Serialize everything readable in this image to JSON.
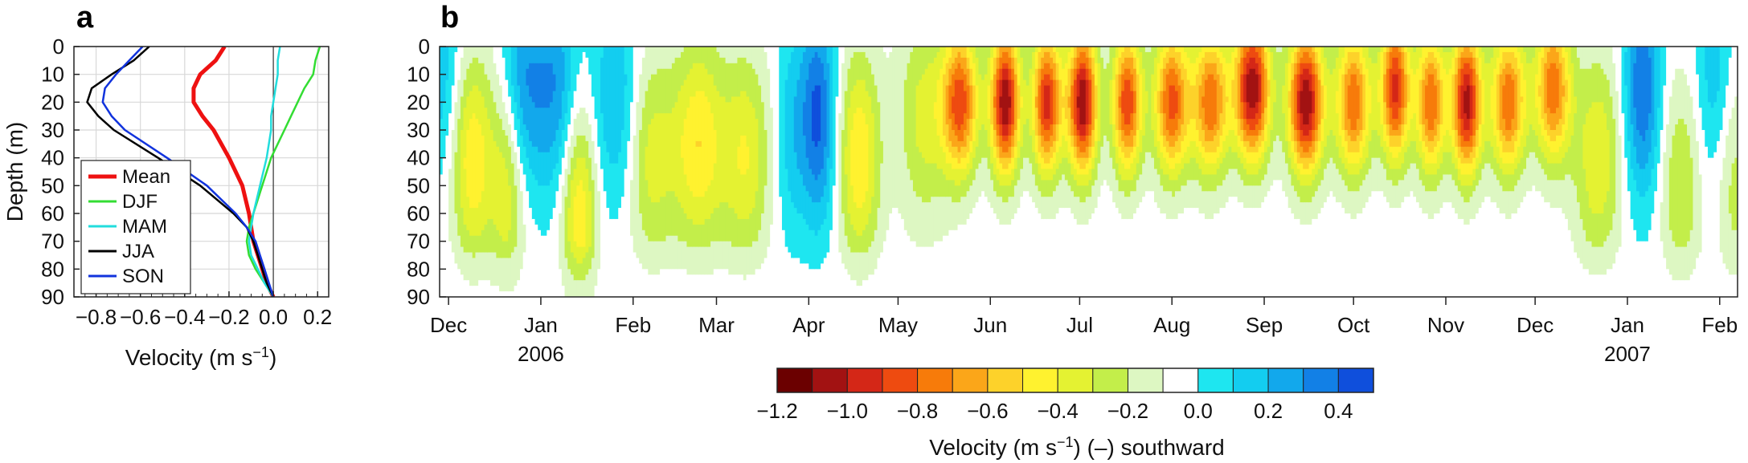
{
  "chart_data": [
    {
      "panel": "a",
      "type": "line",
      "xlabel": "Velocity (m s",
      "xlabel_sup": "−1",
      "xlabel_tail": ")",
      "ylabel": "Depth (m)",
      "xlim": [
        -0.9,
        0.25
      ],
      "ylim": [
        90,
        0
      ],
      "x_ticks": [
        -0.8,
        -0.6,
        -0.4,
        -0.2,
        0.0,
        0.2
      ],
      "x_tick_labels": [
        "−0.8",
        "−0.6",
        "−0.4",
        "−0.2",
        "0.0",
        "0.2"
      ],
      "y_ticks": [
        0,
        10,
        20,
        30,
        40,
        50,
        60,
        70,
        80,
        90
      ],
      "y_tick_labels": [
        "0",
        "10",
        "20",
        "30",
        "40",
        "50",
        "60",
        "70",
        "80",
        "90"
      ],
      "grid": true,
      "legend_position": "bottom-left",
      "depth": [
        0,
        5,
        10,
        15,
        20,
        25,
        30,
        40,
        50,
        60,
        65,
        70,
        75,
        80,
        85,
        90
      ],
      "series": [
        {
          "name": "Mean",
          "color": "#ee1111",
          "width": 5,
          "values": [
            -0.22,
            -0.26,
            -0.33,
            -0.36,
            -0.36,
            -0.32,
            -0.27,
            -0.2,
            -0.14,
            -0.11,
            -0.1,
            -0.09,
            -0.07,
            -0.05,
            -0.03,
            0.0
          ]
        },
        {
          "name": "DJF",
          "color": "#33dd33",
          "width": 2.5,
          "values": [
            0.21,
            0.19,
            0.18,
            0.14,
            0.11,
            0.08,
            0.05,
            -0.01,
            -0.05,
            -0.09,
            -0.11,
            -0.12,
            -0.11,
            -0.08,
            -0.04,
            0.0
          ]
        },
        {
          "name": "MAM",
          "color": "#22dddd",
          "width": 2.5,
          "values": [
            0.03,
            0.02,
            0.02,
            0.01,
            0.0,
            -0.01,
            -0.01,
            -0.03,
            -0.06,
            -0.09,
            -0.1,
            -0.11,
            -0.1,
            -0.07,
            -0.04,
            0.0
          ]
        },
        {
          "name": "JJA",
          "color": "#000000",
          "width": 2.5,
          "values": [
            -0.56,
            -0.63,
            -0.73,
            -0.82,
            -0.84,
            -0.79,
            -0.72,
            -0.52,
            -0.33,
            -0.18,
            -0.12,
            -0.09,
            -0.07,
            -0.05,
            -0.03,
            0.0
          ]
        },
        {
          "name": "SON",
          "color": "#1133dd",
          "width": 2.5,
          "values": [
            -0.59,
            -0.65,
            -0.71,
            -0.76,
            -0.77,
            -0.73,
            -0.67,
            -0.48,
            -0.3,
            -0.17,
            -0.12,
            -0.08,
            -0.06,
            -0.04,
            -0.02,
            0.0
          ]
        }
      ]
    },
    {
      "panel": "b",
      "type": "heatmap",
      "description_of_field": "alongshore velocity versus depth (0–90 m) and time (Dec 2005 – Feb 2007); filled contours",
      "ylim": [
        90,
        0
      ],
      "y_ticks": [
        0,
        10,
        20,
        30,
        40,
        50,
        60,
        70,
        80,
        90
      ],
      "y_tick_labels": [
        "0",
        "10",
        "20",
        "30",
        "40",
        "50",
        "60",
        "70",
        "80",
        "90"
      ],
      "x_ticks": [
        "Dec",
        "Jan",
        "Feb",
        "Mar",
        "Apr",
        "May",
        "Jun",
        "Jul",
        "Aug",
        "Sep",
        "Oct",
        "Nov",
        "Dec",
        "Jan",
        "Feb"
      ],
      "x_tick_days": [
        0,
        31,
        62,
        90,
        121,
        151,
        182,
        212,
        243,
        274,
        304,
        335,
        365,
        396,
        427
      ],
      "x_range_days": [
        -3,
        433
      ],
      "year_labels": [
        {
          "text": "2006",
          "tick_index": 1
        },
        {
          "text": "2007",
          "tick_index": 13
        }
      ],
      "velocity_levels": [
        -1.2,
        -1.1,
        -1.0,
        -0.9,
        -0.8,
        -0.7,
        -0.6,
        -0.5,
        -0.4,
        -0.3,
        -0.2,
        -0.1,
        0.0,
        0.1,
        0.2,
        0.3,
        0.4,
        0.5
      ],
      "events": [
        {
          "day": -3,
          "amp": 0.22,
          "width": 8,
          "core_depth": 10
        },
        {
          "day": 8,
          "amp": -0.45,
          "width": 7,
          "core_depth": 40
        },
        {
          "day": 20,
          "amp": -0.35,
          "width": 6,
          "core_depth": 50
        },
        {
          "day": 25,
          "amp": 0.35,
          "width": 7,
          "core_depth": 15
        },
        {
          "day": 36,
          "amp": 0.32,
          "width": 7,
          "core_depth": 15
        },
        {
          "day": 44,
          "amp": -0.45,
          "width": 6,
          "core_depth": 60
        },
        {
          "day": 56,
          "amp": 0.25,
          "width": 8,
          "core_depth": 20
        },
        {
          "day": 68,
          "amp": -0.3,
          "width": 8,
          "core_depth": 40
        },
        {
          "day": 84,
          "amp": -0.45,
          "width": 9,
          "core_depth": 35
        },
        {
          "day": 100,
          "amp": -0.35,
          "width": 8,
          "core_depth": 40
        },
        {
          "day": 115,
          "amp": 0.18,
          "width": 5,
          "core_depth": 30
        },
        {
          "day": 124,
          "amp": 0.48,
          "width": 6,
          "core_depth": 25
        },
        {
          "day": 138,
          "amp": -0.45,
          "width": 7,
          "core_depth": 40
        },
        {
          "day": 160,
          "amp": -0.3,
          "width": 9,
          "core_depth": 25
        },
        {
          "day": 172,
          "amp": -0.8,
          "width": 6,
          "core_depth": 20
        },
        {
          "day": 187,
          "amp": -1.05,
          "width": 5,
          "core_depth": 20
        },
        {
          "day": 201,
          "amp": -0.9,
          "width": 5,
          "core_depth": 20
        },
        {
          "day": 213,
          "amp": -1.05,
          "width": 5,
          "core_depth": 20
        },
        {
          "day": 228,
          "amp": -0.85,
          "width": 5,
          "core_depth": 20
        },
        {
          "day": 243,
          "amp": -0.8,
          "width": 6,
          "core_depth": 20
        },
        {
          "day": 256,
          "amp": -0.75,
          "width": 6,
          "core_depth": 20
        },
        {
          "day": 270,
          "amp": -1.05,
          "width": 6,
          "core_depth": 15
        },
        {
          "day": 288,
          "amp": -1.05,
          "width": 6,
          "core_depth": 20
        },
        {
          "day": 304,
          "amp": -0.75,
          "width": 6,
          "core_depth": 20
        },
        {
          "day": 318,
          "amp": -0.9,
          "width": 5,
          "core_depth": 15
        },
        {
          "day": 330,
          "amp": -0.75,
          "width": 5,
          "core_depth": 20
        },
        {
          "day": 342,
          "amp": -1.0,
          "width": 5,
          "core_depth": 20
        },
        {
          "day": 356,
          "amp": -0.75,
          "width": 6,
          "core_depth": 20
        },
        {
          "day": 371,
          "amp": -0.75,
          "width": 6,
          "core_depth": 15
        },
        {
          "day": 386,
          "amp": -0.35,
          "width": 8,
          "core_depth": 40
        },
        {
          "day": 401,
          "amp": 0.45,
          "width": 6,
          "core_depth": 15
        },
        {
          "day": 414,
          "amp": -0.25,
          "width": 7,
          "core_depth": 50
        },
        {
          "day": 425,
          "amp": 0.2,
          "width": 6,
          "core_depth": 10
        },
        {
          "day": 432,
          "amp": -0.2,
          "width": 6,
          "core_depth": 50
        }
      ]
    },
    {
      "type": "colorbar",
      "label": "Velocity (m s",
      "label_sup": "−1",
      "label_tail": ") (–) southward",
      "tick_values": [
        -1.2,
        -1.0,
        -0.8,
        -0.6,
        -0.4,
        -0.2,
        0.0,
        0.2,
        0.4
      ],
      "tick_labels": [
        "−1.2",
        "−1.0",
        "−0.8",
        "−0.6",
        "−0.4",
        "−0.2",
        "0.0",
        "0.2",
        "0.4"
      ],
      "range": [
        -1.2,
        0.5
      ],
      "colors": [
        "#6b0000",
        "#a21212",
        "#d42717",
        "#ee4b10",
        "#f77b0a",
        "#fba619",
        "#fdd22a",
        "#fff22f",
        "#e4f232",
        "#c3ee4a",
        "#ddf7c2",
        "#ffffff",
        "#1ee6f0",
        "#13cdf0",
        "#12a8ec",
        "#1280e6",
        "#0f4fdc"
      ]
    }
  ],
  "labels": {
    "panel_a": "a",
    "panel_b": "b"
  }
}
